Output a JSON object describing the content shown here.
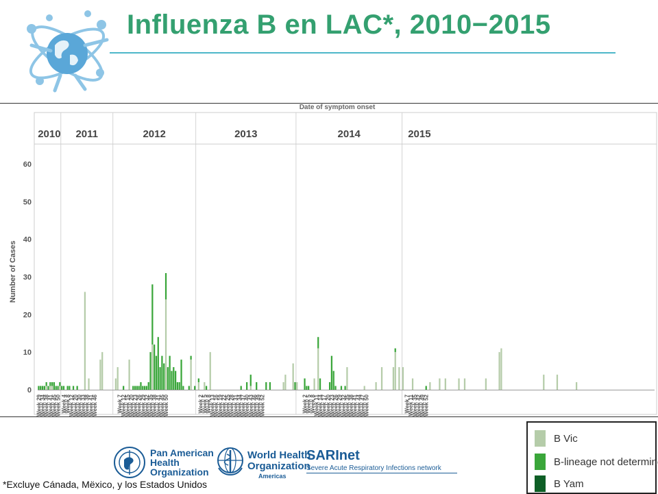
{
  "header": {
    "title": "Influenza B en LAC*, 2010−2015"
  },
  "colors": {
    "title": "#34a070",
    "rule": "#4cb7c9",
    "b_vic": "#b5cca9",
    "b_undetermined": "#3aa63a",
    "b_yam": "#0e5f26",
    "logo_blue": "#1b5c96"
  },
  "chart_data": {
    "type": "bar",
    "stacked": true,
    "title": "Date of symptom onset",
    "xlabel": "",
    "ylabel": "Number of Cases",
    "ylim": [
      0,
      60
    ],
    "yticks": [
      0,
      10,
      20,
      30,
      40,
      50,
      60
    ],
    "grid": false,
    "legend_position": "bottom-right",
    "years": [
      "2010",
      "2011",
      "2012",
      "2013",
      "2014",
      "2015"
    ],
    "year_week_counts": [
      12,
      27,
      43,
      52,
      55,
      18
    ],
    "tick_labels": [
      "Week 29",
      "Week 34",
      "Week 38",
      "Week 41",
      "Week 45",
      "Week 50",
      "Week 4",
      "Week 8",
      "Week 12",
      "Week 20",
      "Week 30",
      "Week 33",
      "Week 38",
      "Week 41",
      "Week 46",
      "Week 7",
      "Week 12",
      "Week 15",
      "Week 20",
      "Week 23",
      "Week 26",
      "Week 29",
      "Week 32",
      "Week 35",
      "Week 38",
      "Week 41",
      "Week 45",
      "Week 50",
      "Week 2",
      "Week 5",
      "Week 8",
      "Week 13",
      "Week 16",
      "Week 19",
      "Week 22",
      "Week 25",
      "Week 28",
      "Week 31",
      "Week 34",
      "Week 37",
      "Week 40",
      "Week 43",
      "Week 46",
      "Week 49",
      "Week 52",
      "Week 2",
      "Week 5",
      "Week 8",
      "Week 11",
      "Week 14",
      "Week 17",
      "Week 20",
      "Week 23",
      "Week 26",
      "Week 29",
      "Week 32",
      "Week 35",
      "Week 38",
      "Week 41",
      "Week 44",
      "Week 47",
      "Week 50",
      "Week 7",
      "Week 11",
      "Week 35",
      "Week 42",
      "Week 49",
      "Week 52"
    ],
    "tick_index": [
      0,
      2,
      4,
      6,
      8,
      10,
      13,
      15,
      17,
      19,
      21,
      23,
      25,
      27,
      29,
      42,
      44,
      46,
      48,
      50,
      52,
      54,
      56,
      58,
      60,
      62,
      64,
      66,
      84,
      86,
      88,
      90,
      92,
      94,
      96,
      98,
      100,
      102,
      104,
      106,
      108,
      110,
      112,
      114,
      116,
      138,
      140,
      142,
      144,
      146,
      148,
      150,
      152,
      154,
      156,
      158,
      160,
      162,
      164,
      166,
      168,
      170,
      191,
      193,
      195,
      197,
      199,
      201
    ],
    "series": [
      {
        "name": "B Vic",
        "values": [
          0,
          0,
          0,
          0,
          1,
          0,
          1,
          1,
          0,
          0,
          0,
          1,
          0,
          0,
          0,
          0,
          0,
          0,
          0,
          0,
          0,
          0,
          0,
          0,
          26,
          0,
          3,
          0,
          0,
          0,
          0,
          0,
          8,
          10,
          0,
          0,
          0,
          0,
          0,
          0,
          3,
          6,
          0,
          0,
          0,
          0,
          0,
          8,
          0,
          0,
          0,
          0,
          0,
          0,
          0,
          0,
          0,
          0,
          0,
          12,
          0,
          0,
          0,
          0,
          0,
          0,
          24,
          0,
          0,
          0,
          0,
          0,
          0,
          0,
          0,
          0,
          0,
          0,
          0,
          8,
          0,
          0,
          0,
          2,
          0,
          0,
          2,
          0,
          0,
          10,
          0,
          0,
          0,
          0,
          0,
          0,
          0,
          0,
          0,
          0,
          0,
          0,
          0,
          0,
          0,
          0,
          0,
          0,
          0,
          0,
          1,
          0,
          0,
          0,
          0,
          0,
          0,
          0,
          0,
          0,
          0,
          0,
          0,
          0,
          0,
          0,
          0,
          2,
          4,
          0,
          0,
          0,
          7,
          0,
          2,
          0,
          0,
          0,
          0,
          0,
          0,
          0,
          0,
          3,
          0,
          11,
          0,
          0,
          0,
          0,
          0,
          0,
          0,
          0,
          0,
          0,
          0,
          0,
          0,
          0,
          6,
          0,
          0,
          0,
          0,
          0,
          0,
          0,
          0,
          1,
          0,
          0,
          0,
          0,
          0,
          2,
          0,
          0,
          6,
          0,
          0,
          0,
          0,
          0,
          6,
          10,
          0,
          6,
          0,
          6,
          0,
          0,
          0,
          0,
          3,
          0,
          0,
          0,
          0,
          0,
          0,
          0,
          0,
          2,
          0,
          0,
          0,
          0,
          3,
          0,
          0,
          3,
          0,
          0,
          0,
          0,
          0,
          0,
          3,
          0,
          0,
          3,
          0,
          0,
          0,
          0,
          0,
          0,
          0,
          0,
          0,
          0,
          3,
          0,
          0,
          0,
          0,
          0,
          0,
          10,
          11,
          0,
          0,
          0,
          0,
          0,
          0,
          0,
          0,
          0,
          0,
          0,
          0,
          0,
          0,
          0,
          0,
          0,
          0,
          0,
          0,
          0,
          4,
          0,
          0,
          0,
          0,
          0,
          0,
          4,
          0,
          0,
          0,
          0,
          0,
          0,
          0,
          0,
          0,
          2,
          0,
          0,
          0,
          0,
          0,
          0,
          0,
          0,
          0,
          0,
          0,
          0,
          0,
          0,
          0,
          0,
          0,
          0,
          0,
          0,
          0,
          0,
          0,
          0,
          0,
          0,
          0,
          0,
          0,
          0,
          0,
          0,
          0,
          0,
          0,
          0,
          0,
          0,
          0,
          0
        ]
      },
      {
        "name": "B-lineage not determine..",
        "values": [
          1,
          1,
          1,
          1,
          1,
          1,
          1,
          1,
          2,
          1,
          1,
          1,
          1,
          1,
          0,
          1,
          1,
          0,
          1,
          0,
          1,
          0,
          0,
          0,
          0,
          0,
          0,
          0,
          0,
          0,
          0,
          0,
          0,
          0,
          0,
          0,
          0,
          0,
          0,
          0,
          0,
          0,
          0,
          0,
          1,
          0,
          0,
          0,
          0,
          1,
          1,
          1,
          1,
          2,
          1,
          1,
          1,
          2,
          10,
          16,
          12,
          9,
          14,
          6,
          9,
          7,
          7,
          6,
          9,
          5,
          6,
          5,
          2,
          2,
          8,
          1,
          0,
          0,
          1,
          1,
          0,
          1,
          0,
          1,
          0,
          0,
          0,
          1,
          0,
          0,
          0,
          0,
          0,
          0,
          0,
          0,
          0,
          0,
          0,
          0,
          0,
          0,
          0,
          0,
          0,
          1,
          0,
          0,
          2,
          0,
          3,
          0,
          0,
          2,
          0,
          0,
          0,
          0,
          2,
          0,
          2,
          0,
          0,
          0,
          0,
          0,
          0,
          0,
          0,
          0,
          0,
          0,
          0,
          2,
          0,
          0,
          0,
          0,
          3,
          1,
          1,
          0,
          0,
          0,
          0,
          3,
          3,
          0,
          0,
          0,
          0,
          2,
          9,
          5,
          1,
          0,
          0,
          1,
          0,
          1,
          0,
          0,
          0,
          0,
          0,
          0,
          0,
          0,
          0,
          0,
          0,
          0,
          0,
          0,
          0,
          0,
          0,
          0,
          0,
          0,
          0,
          0,
          0,
          0,
          0,
          1,
          0,
          0,
          0,
          0,
          0,
          0,
          0,
          0,
          0,
          0,
          0,
          0,
          0,
          0,
          0,
          1,
          0,
          0,
          0,
          0,
          0,
          0,
          0,
          0,
          0,
          0,
          0,
          0,
          0,
          0,
          0,
          0,
          0,
          0,
          0,
          0,
          0,
          0,
          0,
          0,
          0,
          0,
          0,
          0,
          0,
          0,
          0,
          0,
          0,
          0,
          0,
          0,
          0,
          0,
          0,
          0,
          0,
          0,
          0,
          0,
          0,
          0,
          0,
          0,
          0,
          0,
          0,
          0,
          0,
          0,
          0,
          0,
          0,
          0,
          0,
          0,
          0,
          0,
          0,
          0,
          0,
          0,
          0,
          0,
          0,
          0,
          0,
          0,
          0,
          0,
          0,
          0,
          0,
          0,
          0,
          0,
          0,
          0,
          0,
          0,
          0,
          0,
          0,
          0,
          0,
          0,
          0,
          0,
          0,
          0,
          0,
          0,
          0,
          0,
          0
        ]
      },
      {
        "name": "B Yam",
        "values": [
          0,
          0,
          0,
          0,
          0,
          0,
          0,
          0,
          0,
          0,
          0,
          0,
          0,
          0,
          0,
          0,
          0,
          0,
          0,
          0,
          0,
          0,
          0,
          0,
          0,
          0,
          0,
          0,
          0,
          0,
          0,
          0,
          0,
          0,
          0,
          0,
          0,
          0,
          0,
          0,
          0,
          0,
          0,
          0,
          0,
          0,
          0,
          0,
          0,
          0,
          0,
          0,
          0,
          0,
          0,
          0,
          0,
          0,
          0,
          0,
          0,
          0,
          0,
          0,
          0,
          0,
          0,
          0,
          0,
          0,
          0,
          0,
          0,
          0,
          0,
          0,
          0,
          0,
          0,
          0,
          0,
          0,
          0,
          0,
          0,
          0,
          0,
          0,
          0,
          0,
          0,
          0,
          0,
          0,
          0,
          0,
          0,
          0,
          0,
          0,
          0,
          0,
          0,
          0,
          0,
          0,
          0,
          0,
          0,
          0,
          0,
          0,
          0,
          0,
          0,
          0,
          0,
          0,
          0,
          0,
          0,
          0,
          0,
          0,
          0,
          0,
          0,
          0,
          0,
          0,
          0,
          0,
          0,
          0,
          0,
          0,
          0,
          0,
          0,
          0,
          0,
          0,
          0,
          0,
          0,
          0,
          0,
          0,
          0,
          0,
          0,
          0,
          0,
          0,
          0,
          0,
          0,
          0,
          0,
          0,
          0,
          0,
          0,
          0,
          0,
          0,
          0,
          0,
          0,
          0,
          0,
          0,
          0,
          0,
          0,
          0,
          0,
          0,
          0,
          0,
          0,
          0,
          0,
          0,
          0,
          0,
          0,
          0,
          0,
          0,
          0,
          0,
          0,
          0,
          0,
          0,
          0,
          0,
          0,
          0,
          0,
          0,
          0,
          0,
          0,
          0,
          0,
          0,
          0,
          0,
          0,
          0,
          0,
          0,
          0,
          0,
          0,
          0,
          0,
          0,
          0,
          0,
          0,
          0,
          0,
          0,
          0,
          0,
          0,
          0,
          0,
          0,
          0,
          0,
          0,
          0,
          0,
          0,
          0,
          0,
          0,
          0,
          0,
          0,
          0,
          0,
          0,
          0,
          0,
          0,
          0,
          0,
          0,
          0,
          0,
          0,
          0,
          0,
          0,
          0,
          0,
          0,
          0,
          0,
          0,
          0,
          0,
          0,
          0,
          0,
          0,
          0,
          0,
          0,
          0,
          0,
          0,
          0,
          0,
          0,
          0,
          0,
          0,
          0,
          0,
          0,
          0,
          0,
          0,
          0,
          0,
          0,
          0,
          0,
          0,
          0,
          0,
          0,
          0,
          0,
          0,
          0,
          0,
          0,
          0,
          0,
          0,
          0,
          0,
          0,
          0,
          0,
          0,
          0,
          0,
          0,
          0,
          0,
          0,
          0,
          0,
          0,
          0
        ]
      }
    ]
  },
  "legend": {
    "items": [
      "B Vic",
      "B-lineage not determine..",
      "B Yam"
    ]
  },
  "logos": {
    "paho": "Pan American\nHealth\nOrganization",
    "who": "World Health\nOrganization",
    "who_region": "Americas",
    "sari_name": "SARInet",
    "sari_sub": "Severe Acute Respiratory Infections network"
  },
  "footnote": "*Excluye Cánada, Mëxico, y los Estados Unidos"
}
